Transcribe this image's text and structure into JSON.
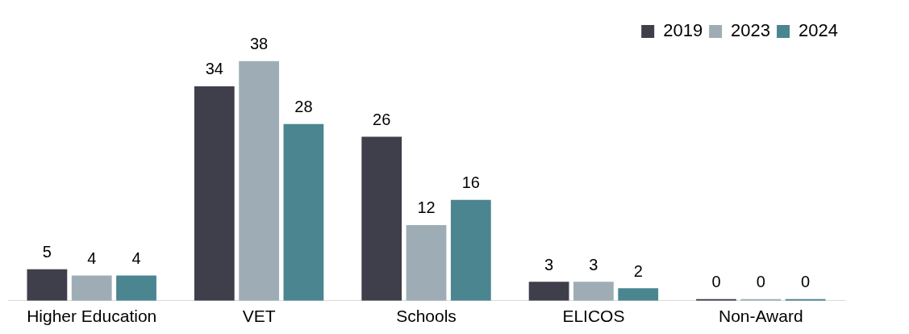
{
  "chart_data": {
    "type": "bar",
    "categories": [
      "Higher Education",
      "VET",
      "Schools",
      "ELICOS",
      "Non-Award"
    ],
    "series": [
      {
        "name": "2019",
        "color": "#3f3f4b",
        "values": [
          5,
          34,
          26,
          3,
          0
        ]
      },
      {
        "name": "2023",
        "color": "#9eadb5",
        "values": [
          4,
          38,
          12,
          3,
          0
        ]
      },
      {
        "name": "2024",
        "color": "#4a8590",
        "values": [
          4,
          28,
          16,
          2,
          0
        ]
      }
    ],
    "data_labels": true,
    "legend": "top right",
    "grid": false
  }
}
